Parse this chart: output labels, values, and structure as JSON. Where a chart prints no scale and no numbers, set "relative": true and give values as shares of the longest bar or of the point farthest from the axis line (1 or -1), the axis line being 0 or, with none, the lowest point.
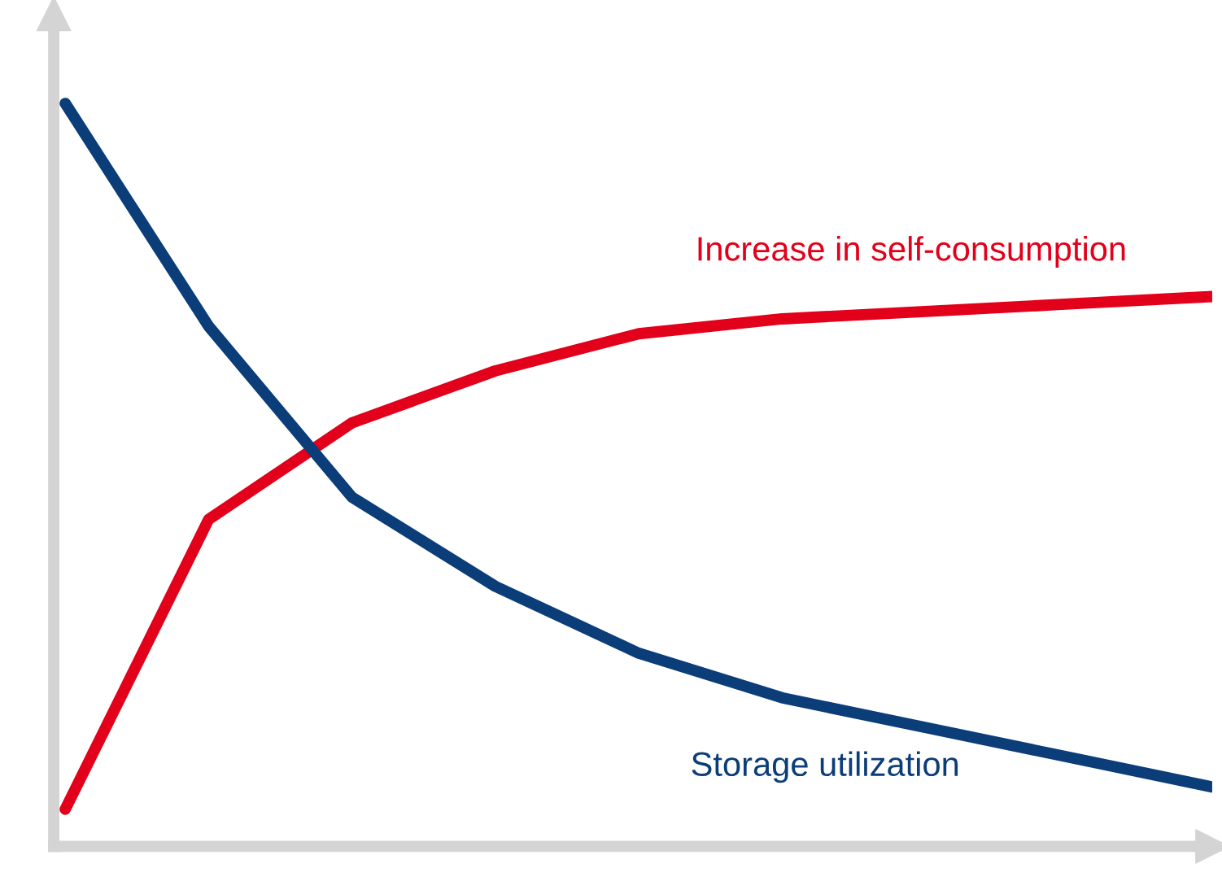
{
  "chart_data": {
    "type": "line",
    "relative": true,
    "categories": [
      null,
      null,
      null,
      null,
      null,
      null,
      null,
      null,
      null
    ],
    "series": [
      {
        "name": "Increase in self-consumption",
        "color": "#e2001a",
        "values": [
          0.05,
          0.44,
          0.57,
          0.64,
          0.69,
          0.71,
          0.72,
          0.73,
          0.74
        ]
      },
      {
        "name": "Storage utilization",
        "color": "#0b3d78",
        "values": [
          1,
          0.7,
          0.47,
          0.35,
          0.26,
          0.2,
          0.16,
          0.12,
          0.08
        ]
      }
    ],
    "legend": false,
    "marker": "none",
    "line_style": "solid"
  }
}
